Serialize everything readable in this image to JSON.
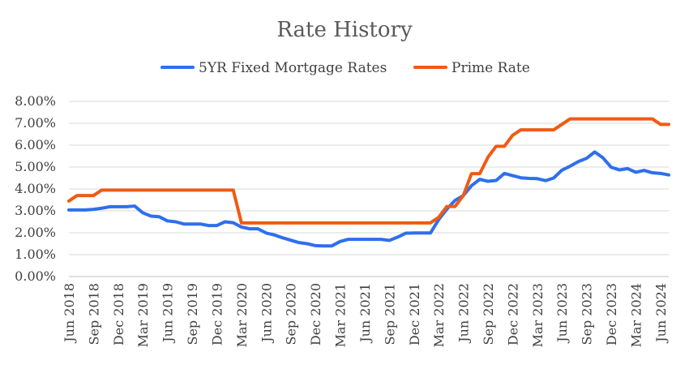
{
  "chart_data": {
    "type": "line",
    "title": "Rate History",
    "xlabel": "",
    "ylabel": "",
    "ylim": [
      0,
      0.08
    ],
    "y_ticks": [
      "0.00%",
      "1.00%",
      "2.00%",
      "3.00%",
      "4.00%",
      "5.00%",
      "6.00%",
      "7.00%",
      "8.00%"
    ],
    "x_tick_labels": [
      "Jun 2018",
      "Sep 2018",
      "Dec 2018",
      "Mar 2019",
      "Jun 2019",
      "Sep 2019",
      "Dec 2019",
      "Mar 2020",
      "Jun 2020",
      "Sep 2020",
      "Dec 2020",
      "Mar 2021",
      "Jun 2021",
      "Sep 2021",
      "Dec 2021",
      "Mar 2022",
      "Jun 2022",
      "Sep 2022",
      "Dec 2022",
      "Mar 2023",
      "Jun 2023",
      "Sep 2023",
      "Dec 2023",
      "Mar 2024",
      "Jun 2024"
    ],
    "x": [
      "Jun 2018",
      "Jul 2018",
      "Aug 2018",
      "Sep 2018",
      "Oct 2018",
      "Nov 2018",
      "Dec 2018",
      "Jan 2019",
      "Feb 2019",
      "Mar 2019",
      "Apr 2019",
      "May 2019",
      "Jun 2019",
      "Jul 2019",
      "Aug 2019",
      "Sep 2019",
      "Oct 2019",
      "Nov 2019",
      "Dec 2019",
      "Jan 2020",
      "Feb 2020",
      "Mar 2020",
      "Apr 2020",
      "May 2020",
      "Jun 2020",
      "Jul 2020",
      "Aug 2020",
      "Sep 2020",
      "Oct 2020",
      "Nov 2020",
      "Dec 2020",
      "Jan 2021",
      "Feb 2021",
      "Mar 2021",
      "Apr 2021",
      "May 2021",
      "Jun 2021",
      "Jul 2021",
      "Aug 2021",
      "Sep 2021",
      "Oct 2021",
      "Nov 2021",
      "Dec 2021",
      "Jan 2022",
      "Feb 2022",
      "Mar 2022",
      "Apr 2022",
      "May 2022",
      "Jun 2022",
      "Jul 2022",
      "Aug 2022",
      "Sep 2022",
      "Oct 2022",
      "Nov 2022",
      "Dec 2022",
      "Jan 2023",
      "Feb 2023",
      "Mar 2023",
      "Apr 2023",
      "May 2023",
      "Jun 2023",
      "Jul 2023",
      "Aug 2023",
      "Sep 2023",
      "Oct 2023",
      "Nov 2023",
      "Dec 2023",
      "Jan 2024",
      "Feb 2024",
      "Mar 2024",
      "Apr 2024",
      "May 2024",
      "Jun 2024",
      "Jul 2024"
    ],
    "legend_position": "top",
    "series": [
      {
        "name": "5YR Fixed Mortgage Rates",
        "color": "#2F6FED",
        "values": [
          0.0304,
          0.0304,
          0.0304,
          0.0307,
          0.0312,
          0.0319,
          0.0319,
          0.0319,
          0.0322,
          0.0291,
          0.0276,
          0.0273,
          0.0254,
          0.025,
          0.024,
          0.024,
          0.024,
          0.0233,
          0.0233,
          0.025,
          0.0246,
          0.0226,
          0.0218,
          0.0218,
          0.0199,
          0.019,
          0.0177,
          0.0166,
          0.0155,
          0.015,
          0.0141,
          0.014,
          0.014,
          0.016,
          0.017,
          0.017,
          0.017,
          0.017,
          0.017,
          0.0165,
          0.018,
          0.0198,
          0.0199,
          0.0199,
          0.0199,
          0.026,
          0.0308,
          0.0348,
          0.037,
          0.0415,
          0.0444,
          0.0435,
          0.0439,
          0.0471,
          0.0461,
          0.0451,
          0.0448,
          0.0447,
          0.0438,
          0.045,
          0.0486,
          0.0504,
          0.0525,
          0.054,
          0.0569,
          0.0542,
          0.0499,
          0.0487,
          0.0493,
          0.0476,
          0.0485,
          0.0474,
          0.0471,
          0.0464
        ]
      },
      {
        "name": "Prime Rate",
        "color": "#F05A14",
        "values": [
          0.0345,
          0.037,
          0.037,
          0.037,
          0.0395,
          0.0395,
          0.0395,
          0.0395,
          0.0395,
          0.0395,
          0.0395,
          0.0395,
          0.0395,
          0.0395,
          0.0395,
          0.0395,
          0.0395,
          0.0395,
          0.0395,
          0.0395,
          0.0395,
          0.0245,
          0.0245,
          0.0245,
          0.0245,
          0.0245,
          0.0245,
          0.0245,
          0.0245,
          0.0245,
          0.0245,
          0.0245,
          0.0245,
          0.0245,
          0.0245,
          0.0245,
          0.0245,
          0.0245,
          0.0245,
          0.0245,
          0.0245,
          0.0245,
          0.0245,
          0.0245,
          0.0245,
          0.027,
          0.032,
          0.032,
          0.037,
          0.047,
          0.047,
          0.0545,
          0.0595,
          0.0595,
          0.0645,
          0.067,
          0.067,
          0.067,
          0.067,
          0.067,
          0.0695,
          0.072,
          0.072,
          0.072,
          0.072,
          0.072,
          0.072,
          0.072,
          0.072,
          0.072,
          0.072,
          0.072,
          0.0695,
          0.0695
        ]
      }
    ]
  }
}
